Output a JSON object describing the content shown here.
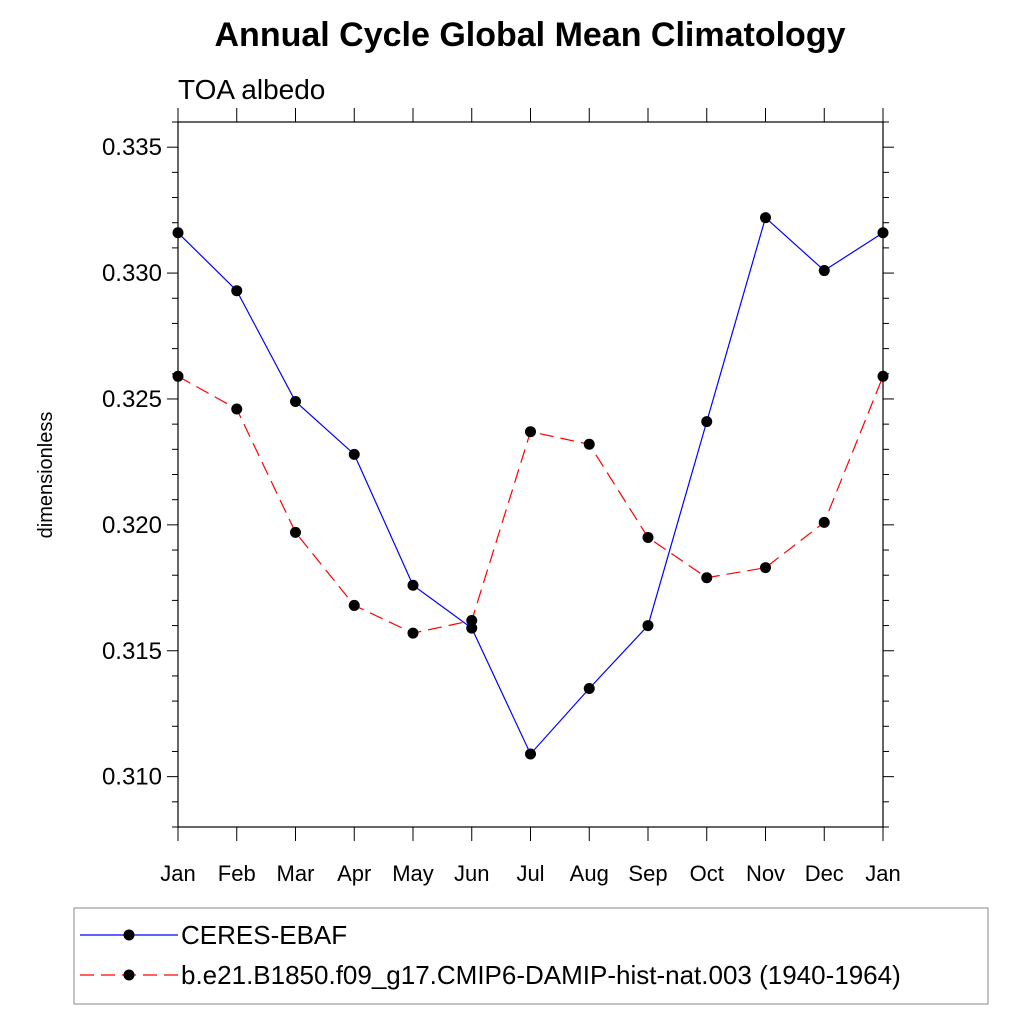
{
  "chart_data": {
    "type": "line",
    "title": "Annual Cycle Global Mean Climatology",
    "subtitle": "TOA albedo",
    "xlabel": "",
    "ylabel": "dimensionless",
    "categories": [
      "Jan",
      "Feb",
      "Mar",
      "Apr",
      "May",
      "Jun",
      "Jul",
      "Aug",
      "Sep",
      "Oct",
      "Nov",
      "Dec",
      "Jan"
    ],
    "yticks": [
      "0.310",
      "0.315",
      "0.320",
      "0.325",
      "0.330",
      "0.335"
    ],
    "ylim": [
      0.308,
      0.336
    ],
    "grid": false,
    "legend_position": "bottom",
    "series": [
      {
        "name": "CERES-EBAF",
        "color": "#0000ff",
        "dash": "solid",
        "values": [
          0.3316,
          0.3293,
          0.3249,
          0.3228,
          0.3176,
          0.3159,
          0.3109,
          0.3135,
          0.316,
          0.3241,
          0.3322,
          0.3301,
          0.3316
        ]
      },
      {
        "name": "b.e21.B1850.f09_g17.CMIP6-DAMIP-hist-nat.003 (1940-1964)",
        "color": "#ff0000",
        "dash": "dashed",
        "values": [
          0.3259,
          0.3246,
          0.3197,
          0.3168,
          0.3157,
          0.3162,
          0.3237,
          0.3232,
          0.3195,
          0.3179,
          0.3183,
          0.3201,
          0.3259
        ]
      }
    ]
  }
}
